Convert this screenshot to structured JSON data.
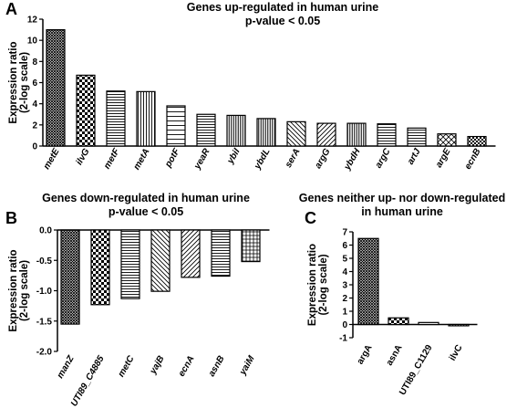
{
  "panels": {
    "a": {
      "letter": "A",
      "title_line1": "Genes up-regulated in human urine",
      "title_line2": "p-value < 0.05"
    },
    "b": {
      "letter": "B",
      "title_line1": "Genes down-regulated in human urine",
      "title_line2": "p-value < 0.05"
    },
    "c": {
      "letter": "C",
      "title_line1": "Genes neither up- nor down-regulated",
      "title_line2": "in human urine"
    }
  },
  "chart_data": [
    {
      "id": "A",
      "type": "bar",
      "title": "Genes up-regulated in human urine p-value < 0.05",
      "ylabel": "Expression ratio (2-log scale)",
      "ylabel_line1": "Expression ratio",
      "ylabel_line2": "(2-log scale)",
      "ylim": [
        0,
        12
      ],
      "yticks": [
        0,
        2,
        4,
        6,
        8,
        10,
        12
      ],
      "categories": [
        "metE",
        "ilvG",
        "metF",
        "metA",
        "potF",
        "yeaR",
        "ybiI",
        "ybdL",
        "serA",
        "argG",
        "ybdH",
        "argC",
        "artJ",
        "argE",
        "ecnB"
      ],
      "values": [
        11.0,
        6.7,
        5.2,
        5.15,
        3.8,
        3.0,
        2.9,
        2.6,
        2.3,
        2.15,
        2.15,
        2.1,
        1.7,
        1.15,
        0.9
      ],
      "patterns": [
        "cross-dense",
        "checker",
        "hlines",
        "vlines",
        "hlines-sparse",
        "hlines",
        "vlines-dense",
        "vlines-dense",
        "diag-back",
        "diag-fwd",
        "vlines-dense",
        "hlines",
        "hlines",
        "cross-diag",
        "checker-fine"
      ],
      "grid": false,
      "legend": "none"
    },
    {
      "id": "B",
      "type": "bar",
      "title": "Genes down-regulated in human urine p-value < 0.05",
      "ylabel": "Expression ratio (2-log scale)",
      "ylabel_line1": "Expression ratio",
      "ylabel_line2": "(2-log scale)",
      "ylim": [
        -2.0,
        0.0
      ],
      "yticks": [
        0.0,
        -0.5,
        -1.0,
        -1.5,
        -2.0
      ],
      "ytick_labels": [
        "0.0",
        "-0.5",
        "-1.0",
        "-1.5",
        "-2.0"
      ],
      "categories": [
        "manZ",
        "UTI89_C4885",
        "metC",
        "yajB",
        "ecnA",
        "asnB",
        "yaiM"
      ],
      "values": [
        -1.55,
        -1.23,
        -1.13,
        -1.01,
        -0.78,
        -0.76,
        -0.52
      ],
      "patterns": [
        "cross-dense",
        "checker",
        "hlines",
        "diag-back",
        "diag-fwd",
        "hlines",
        "grid"
      ],
      "grid": false,
      "legend": "none"
    },
    {
      "id": "C",
      "type": "bar",
      "title": "Genes neither up- nor down-regulated in human urine",
      "ylabel": "Expression ratio (2-log scale)",
      "ylabel_line1": "Expression ratio",
      "ylabel_line2": "(2-log scale)",
      "ylim": [
        -1,
        7
      ],
      "yticks": [
        -1,
        0,
        1,
        2,
        3,
        4,
        5,
        6,
        7
      ],
      "categories": [
        "argA",
        "asnA",
        "UTI89_C1129",
        "ilvC"
      ],
      "values": [
        6.5,
        0.5,
        0.15,
        -0.1
      ],
      "patterns": [
        "cross-dense",
        "checker",
        "hlines",
        "vlines"
      ],
      "grid": false,
      "legend": "none"
    }
  ]
}
